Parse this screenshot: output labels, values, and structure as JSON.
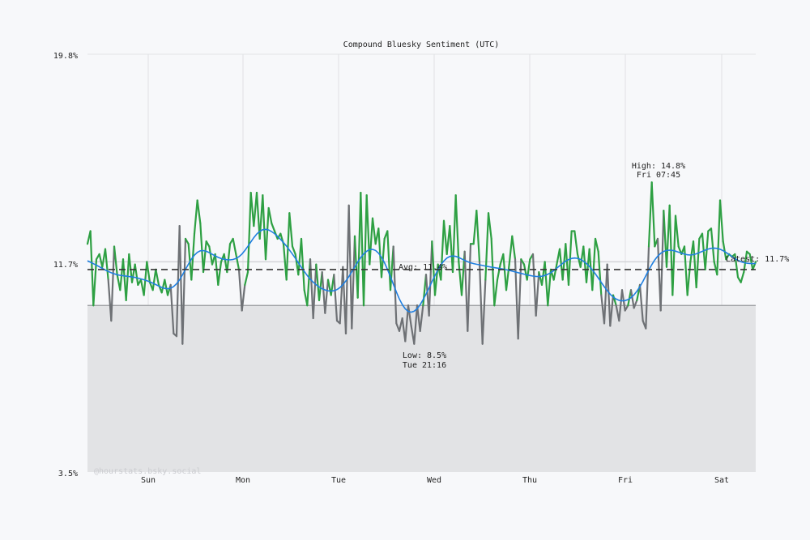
{
  "chart_data": {
    "type": "line",
    "title": "Compound Bluesky Sentiment (UTC)",
    "ylim": [
      3.5,
      19.8
    ],
    "y_tick_labels": [
      "19.8%",
      "11.7%",
      "3.5%"
    ],
    "x_tick_labels": [
      "Sun",
      "Mon",
      "Tue",
      "Wed",
      "Thu",
      "Fri",
      "Sat"
    ],
    "grid": true,
    "threshold": 10.0,
    "colors": {
      "above": "#2ea043",
      "below": "#6e7175",
      "smoothed": "#1f7fe0",
      "shade": "#e2e3e5",
      "background": "#f7f8fa"
    },
    "series_values": [
      12.4,
      12.9,
      10.0,
      11.8,
      12.0,
      11.5,
      12.2,
      11.0,
      9.4,
      12.3,
      11.2,
      10.6,
      11.8,
      10.2,
      12.0,
      10.9,
      11.6,
      10.8,
      11.0,
      10.4,
      11.7,
      10.9,
      10.6,
      11.4,
      10.8,
      10.5,
      11.0,
      10.4,
      10.8,
      8.9,
      8.8,
      13.1,
      8.5,
      12.6,
      12.4,
      11.0,
      12.8,
      14.1,
      13.2,
      11.3,
      12.5,
      12.3,
      11.6,
      12.0,
      10.8,
      11.7,
      12.0,
      11.3,
      12.4,
      12.6,
      12.0,
      11.4,
      9.8,
      10.8,
      11.3,
      14.4,
      13.1,
      14.4,
      12.6,
      14.3,
      11.8,
      13.8,
      13.2,
      12.9,
      12.6,
      12.8,
      12.4,
      11.0,
      13.6,
      12.3,
      12.0,
      11.2,
      12.6,
      10.6,
      10.0,
      11.8,
      9.5,
      11.6,
      10.2,
      11.3,
      9.7,
      11.0,
      10.4,
      11.2,
      9.4,
      9.3,
      11.5,
      8.9,
      13.9,
      9.1,
      12.7,
      10.3,
      14.4,
      10.0,
      14.3,
      11.6,
      13.4,
      12.4,
      13.0,
      11.1,
      12.6,
      12.9,
      10.6,
      12.3,
      9.3,
      9.0,
      9.5,
      8.6,
      10.0,
      9.2,
      8.5,
      10.0,
      9.0,
      10.0,
      11.2,
      9.6,
      12.5,
      10.4,
      11.6,
      11.0,
      13.3,
      12.0,
      13.1,
      11.3,
      14.3,
      11.7,
      10.4,
      12.1,
      9.0,
      12.4,
      12.4,
      13.7,
      11.7,
      8.5,
      11.0,
      13.6,
      12.6,
      10.0,
      11.0,
      11.6,
      12.0,
      10.6,
      11.6,
      12.7,
      11.8,
      8.7,
      11.8,
      11.6,
      11.0,
      11.8,
      12.0,
      9.6,
      11.3,
      10.8,
      11.7,
      10.0,
      11.4,
      11.0,
      11.6,
      12.2,
      11.0,
      12.4,
      10.8,
      12.9,
      12.9,
      12.0,
      11.5,
      12.3,
      10.9,
      12.2,
      10.6,
      12.6,
      12.1,
      10.4,
      9.3,
      11.6,
      9.2,
      10.4,
      10.0,
      9.4,
      10.6,
      9.8,
      10.0,
      10.6,
      9.9,
      10.2,
      10.8,
      9.4,
      9.1,
      12.3,
      14.8,
      12.3,
      12.6,
      9.8,
      13.7,
      11.5,
      13.9,
      10.4,
      13.5,
      12.3,
      12.0,
      12.3,
      10.4,
      11.7,
      12.5,
      10.7,
      12.6,
      12.8,
      11.4,
      12.9,
      13.0,
      11.7,
      11.2,
      14.1,
      12.5,
      11.8,
      12.0,
      11.9,
      12.0,
      11.1,
      10.9,
      11.3,
      12.1,
      12.0,
      11.4,
      11.7
    ],
    "annotations": {
      "high": [
        "High: 14.8%",
        "Fri 07:45"
      ],
      "low": [
        "Low: 8.5%",
        "Tue 21:16"
      ],
      "avg": {
        "label": "Avg: 11.4%",
        "value": 11.4
      },
      "latest": {
        "label": "Latest: 11.7%",
        "value": 11.7
      }
    },
    "watermark": "@hourstats.bsky.social"
  }
}
